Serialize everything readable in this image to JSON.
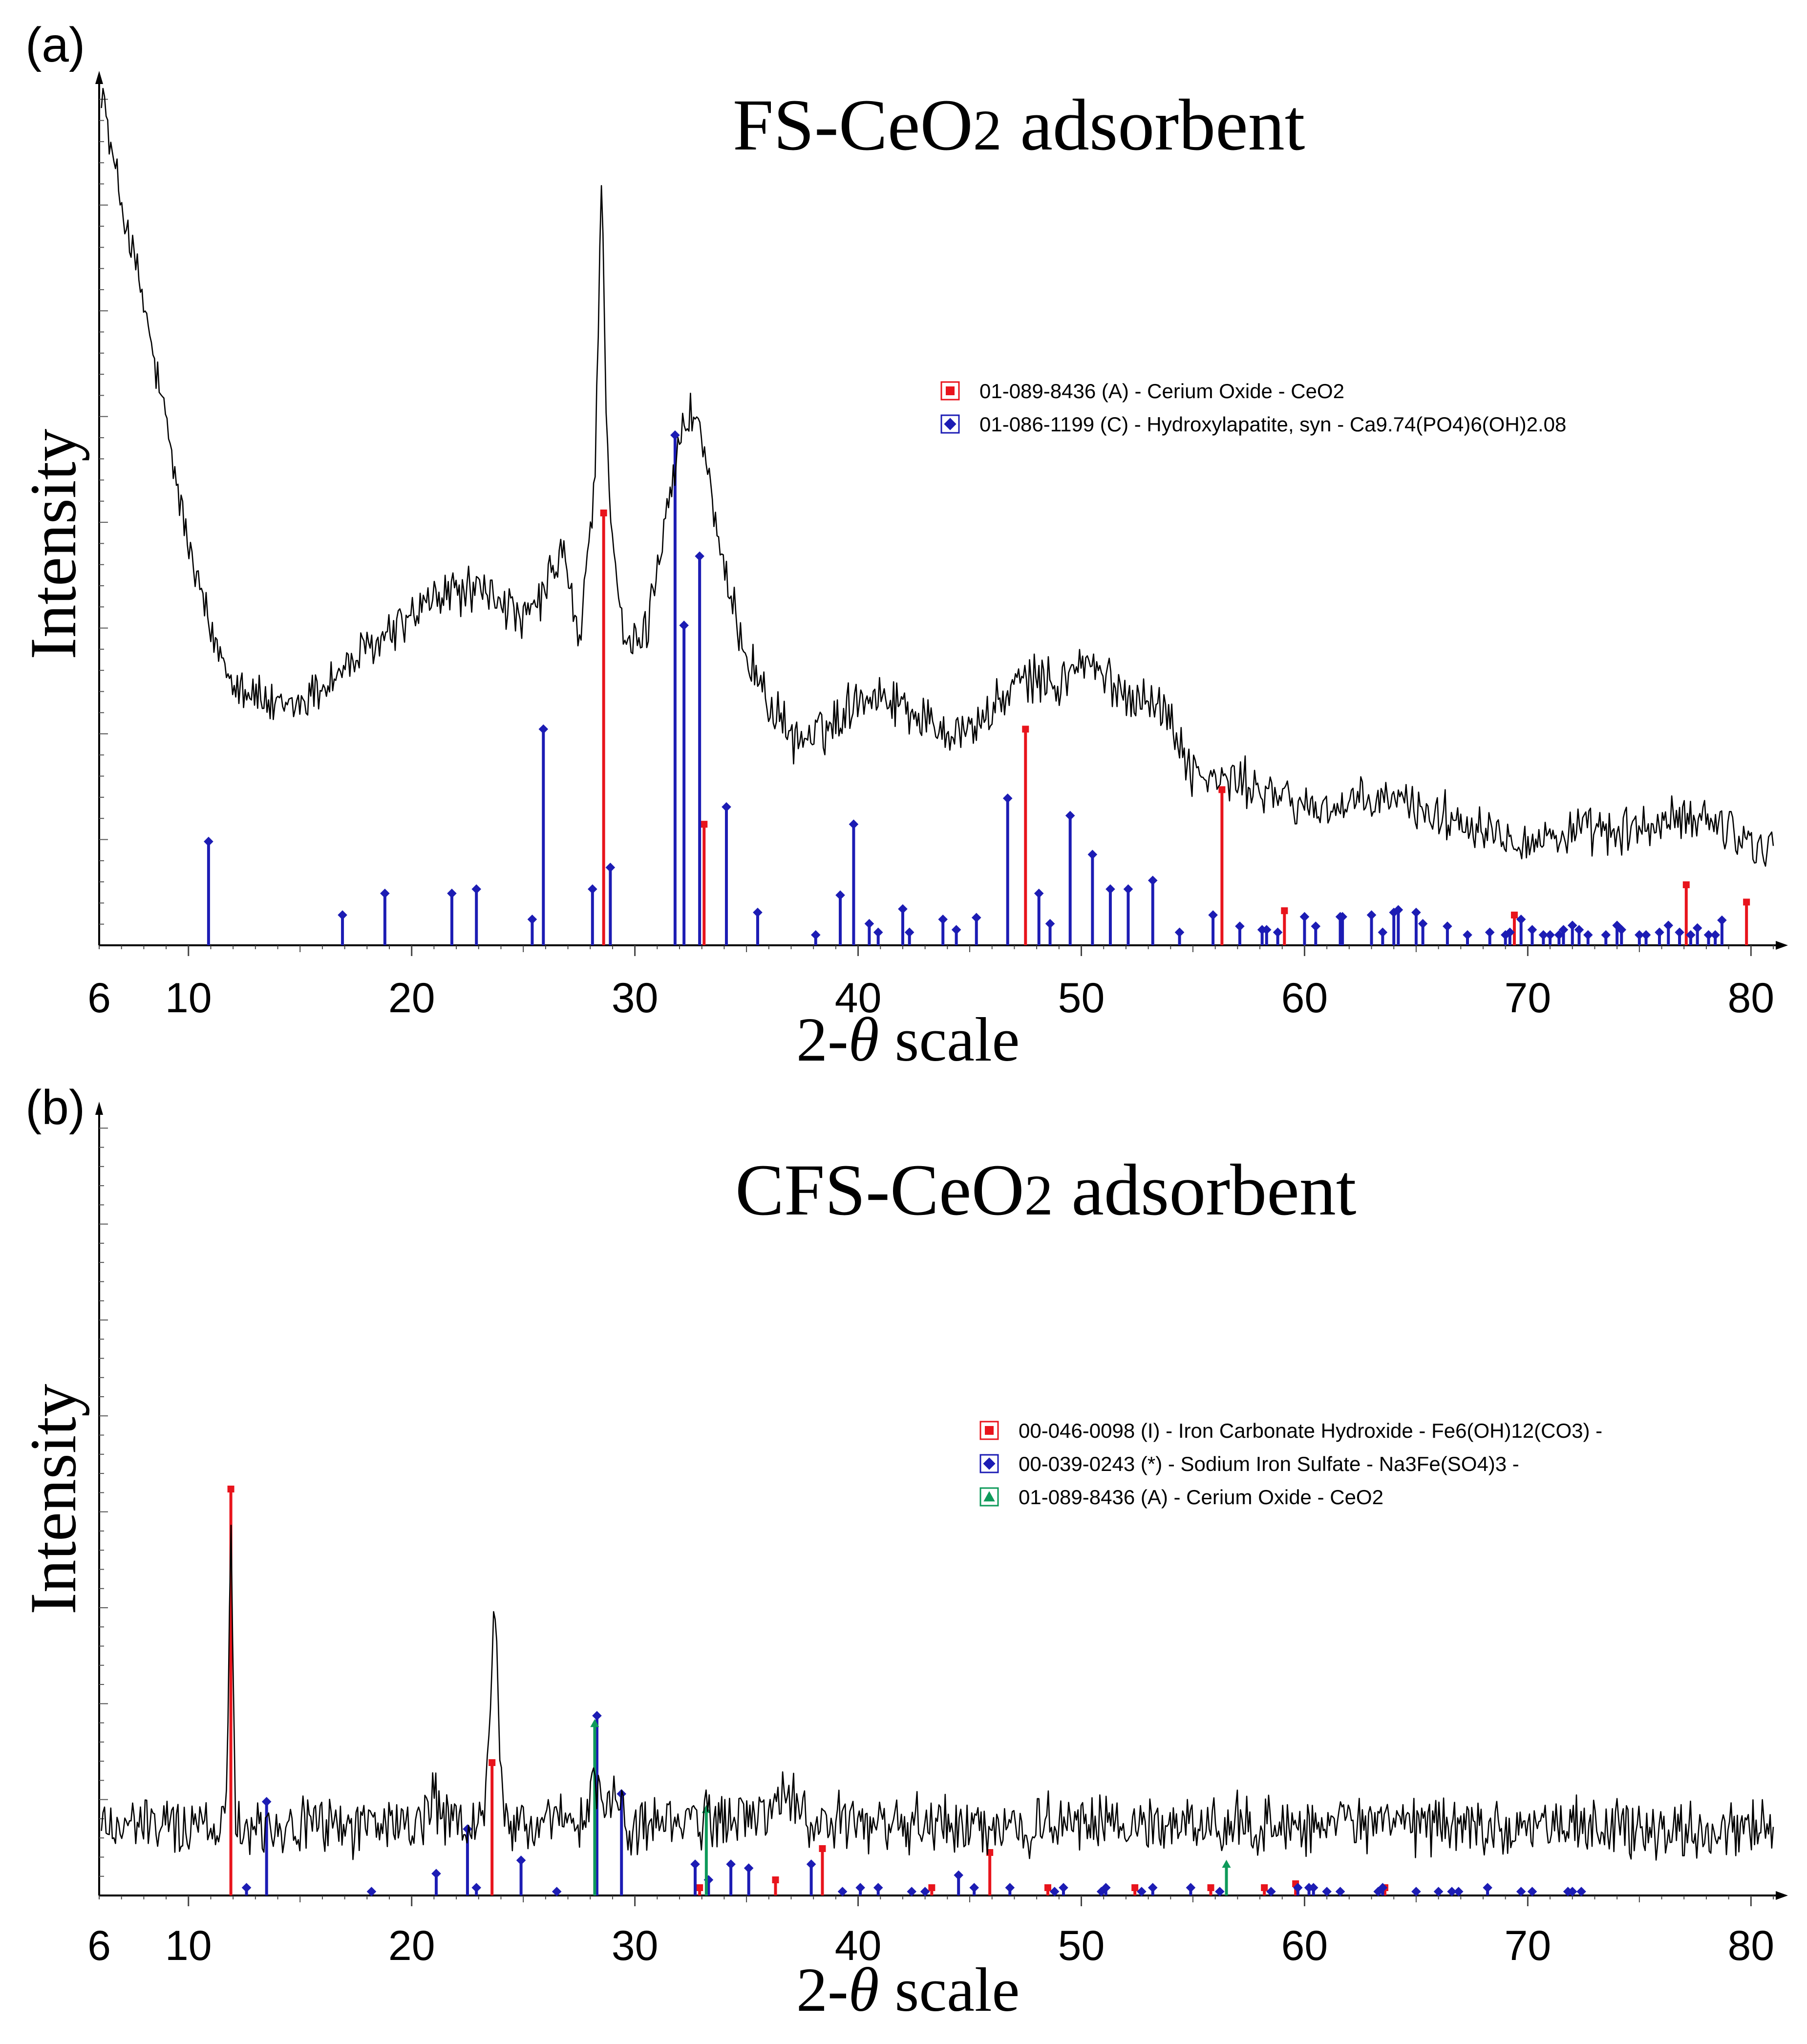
{
  "panels": [
    {
      "label": "(a)",
      "title_main": "FS-CeO",
      "title_sub": "2",
      "title_rest": " adsorbent",
      "ylabel": "Intensity",
      "xlabel_prefix": "2-",
      "xlabel_symbol": "θ",
      "xlabel_suffix": " scale",
      "tick_labels": [
        "6",
        "10",
        "20",
        "30",
        "40",
        "50",
        "60",
        "70",
        "80"
      ],
      "legend": [
        {
          "marker": "square",
          "color": "#e8141c",
          "text": "01-089-8436 (A) - Cerium Oxide - CeO2"
        },
        {
          "marker": "diamond",
          "color": "#1c1cb4",
          "text": "01-086-1199 (C) - Hydroxylapatite, syn - Ca9.74(PO4)6(OH)2.08"
        }
      ]
    },
    {
      "label": "(b)",
      "title_main": "CFS-CeO",
      "title_sub": "2",
      "title_rest": " adsorbent",
      "ylabel": "Intensity",
      "xlabel_prefix": "2-",
      "xlabel_symbol": "θ",
      "xlabel_suffix": " scale",
      "tick_labels": [
        "6",
        "10",
        "20",
        "30",
        "40",
        "50",
        "60",
        "70",
        "80"
      ],
      "legend": [
        {
          "marker": "square",
          "color": "#e8141c",
          "text": "00-046-0098 (I) - Iron Carbonate Hydroxide - Fe6(OH)12(CO3) -"
        },
        {
          "marker": "diamond",
          "color": "#1c1cb4",
          "text": "00-039-0243 (*) - Sodium Iron Sulfate - Na3Fe(SO4)3 -"
        },
        {
          "marker": "triangle",
          "color": "#0e9a5a",
          "text": "01-089-8436 (A) - Cerium Oxide - CeO2"
        }
      ]
    }
  ],
  "chart_data": [
    {
      "type": "line",
      "title": "FS-CeO2 adsorbent",
      "xlabel": "2-θ scale",
      "ylabel": "Intensity",
      "xlim": [
        6,
        81
      ],
      "ylim": [
        0,
        100
      ],
      "xticks": [
        6,
        10,
        20,
        30,
        40,
        50,
        60,
        70,
        80
      ],
      "pattern_profile": [
        [
          6.1,
          100
        ],
        [
          6.5,
          92
        ],
        [
          7,
          86
        ],
        [
          8,
          74
        ],
        [
          9,
          60
        ],
        [
          10,
          46
        ],
        [
          11,
          36
        ],
        [
          12,
          31
        ],
        [
          13,
          29
        ],
        [
          14,
          27
        ],
        [
          15,
          28
        ],
        [
          16,
          30
        ],
        [
          17,
          32
        ],
        [
          18,
          34
        ],
        [
          19,
          36
        ],
        [
          20,
          38
        ],
        [
          21,
          40
        ],
        [
          22,
          41
        ],
        [
          23,
          41
        ],
        [
          24,
          40
        ],
        [
          25,
          37
        ],
        [
          26,
          41
        ],
        [
          26.8,
          46
        ],
        [
          27.5,
          34
        ],
        [
          28.2,
          54
        ],
        [
          28.5,
          88
        ],
        [
          28.8,
          54
        ],
        [
          29.5,
          34
        ],
        [
          30.5,
          36
        ],
        [
          31.5,
          52
        ],
        [
          32.2,
          60
        ],
        [
          32.7,
          62
        ],
        [
          33.2,
          56
        ],
        [
          34,
          42
        ],
        [
          35,
          34
        ],
        [
          36,
          28
        ],
        [
          37,
          24
        ],
        [
          38,
          24
        ],
        [
          39,
          26
        ],
        [
          40,
          29
        ],
        [
          41,
          29
        ],
        [
          42,
          28
        ],
        [
          43,
          26
        ],
        [
          44,
          25
        ],
        [
          45,
          25
        ],
        [
          46,
          27
        ],
        [
          47,
          30
        ],
        [
          48,
          31
        ],
        [
          49,
          30
        ],
        [
          50,
          33
        ],
        [
          51,
          31
        ],
        [
          52,
          29
        ],
        [
          53,
          29
        ],
        [
          54,
          26
        ],
        [
          55,
          20
        ],
        [
          56,
          19
        ],
        [
          57,
          19
        ],
        [
          58,
          18
        ],
        [
          59,
          17
        ],
        [
          60,
          16
        ],
        [
          62,
          16
        ],
        [
          64,
          17
        ],
        [
          66,
          15
        ],
        [
          68,
          14
        ],
        [
          70,
          12
        ],
        [
          72,
          13
        ],
        [
          74,
          13
        ],
        [
          76,
          14
        ],
        [
          78,
          15
        ],
        [
          80,
          12
        ],
        [
          81,
          11
        ]
      ],
      "noise_amplitude": 2.2,
      "series": [
        {
          "name": "01-089-8436 (A) - Cerium Oxide - CeO2",
          "color": "#e8141c",
          "marker": "square",
          "x": [
            28.6,
            33.1,
            47.5,
            56.3,
            59.1,
            69.4,
            77.1,
            79.8
          ],
          "y": [
            50,
            14,
            25,
            18,
            4,
            3.5,
            7,
            5
          ]
        },
        {
          "name": "01-086-1199 (C) - Hydroxylapatite, syn - Ca9.74(PO4)6(OH)2.08",
          "color": "#1c1cb4",
          "marker": "diamond",
          "x": [
            10.9,
            16.9,
            18.8,
            21.8,
            22.9,
            25.4,
            25.9,
            28.1,
            28.9,
            31.8,
            32.2,
            32.9,
            34.1,
            35.5,
            38.1,
            39.2,
            39.8,
            40.5,
            40.9,
            42.0,
            42.3,
            43.8,
            44.4,
            45.3,
            46.7,
            48.1,
            48.6,
            49.5,
            50.5,
            51.3,
            52.1,
            53.2,
            54.4,
            55.9,
            57.1,
            58.1,
            58.3,
            58.8,
            60.0,
            60.5,
            61.6,
            61.7,
            63.0,
            63.5,
            64.0,
            64.2,
            65.0,
            65.3,
            66.4,
            67.3,
            68.3,
            69.0,
            69.2,
            69.7,
            70.2,
            70.7,
            71.0,
            71.4,
            71.6,
            72.0,
            72.3,
            72.7,
            73.5,
            74.0,
            74.2,
            75.0,
            75.3,
            75.9,
            76.3,
            76.8,
            77.3,
            77.6,
            78.1,
            78.4,
            78.7
          ],
          "y": [
            12,
            3.5,
            6,
            6,
            6.5,
            3,
            25,
            6.5,
            9,
            59,
            37,
            45,
            16,
            3.8,
            1.2,
            5.8,
            14,
            2.5,
            1.5,
            4.2,
            1.5,
            3,
            1.8,
            3.2,
            17,
            6,
            2.5,
            15,
            10.5,
            6.5,
            6.5,
            7.5,
            1.5,
            3.5,
            2.2,
            1.8,
            1.8,
            1.5,
            3.3,
            2.2,
            3.3,
            3.3,
            3.5,
            1.5,
            3.8,
            4.1,
            3.8,
            2.5,
            2.2,
            1.2,
            1.5,
            1.2,
            1.5,
            3.0,
            1.8,
            1.2,
            1.2,
            1.2,
            1.8,
            2.3,
            1.8,
            1.2,
            1.2,
            2.3,
            1.8,
            1.2,
            1.2,
            1.5,
            2.3,
            1.5,
            1.2,
            2.0,
            1.2,
            1.2,
            2.9
          ]
        }
      ]
    },
    {
      "type": "line",
      "title": "CFS-CeO2 adsorbent",
      "xlabel": "2-θ scale",
      "ylabel": "Intensity",
      "xlim": [
        6,
        81
      ],
      "ylim": [
        0,
        100
      ],
      "xticks": [
        6,
        10,
        20,
        30,
        40,
        50,
        60,
        70,
        80
      ],
      "pattern_profile": [
        [
          6.1,
          9
        ],
        [
          11.5,
          9
        ],
        [
          11.7,
          12
        ],
        [
          11.9,
          48
        ],
        [
          12.1,
          12
        ],
        [
          12.4,
          9
        ],
        [
          20.5,
          9
        ],
        [
          21.0,
          14
        ],
        [
          21.3,
          9
        ],
        [
          23.2,
          9
        ],
        [
          23.5,
          22
        ],
        [
          23.7,
          40
        ],
        [
          23.9,
          22
        ],
        [
          24.2,
          9
        ],
        [
          27.8,
          9
        ],
        [
          28.2,
          16
        ],
        [
          28.5,
          12
        ],
        [
          29.2,
          12
        ],
        [
          29.6,
          9
        ],
        [
          35.5,
          10
        ],
        [
          36.8,
          13
        ],
        [
          37.5,
          10
        ],
        [
          40,
          9
        ],
        [
          60,
          9
        ],
        [
          70,
          9
        ],
        [
          81,
          8
        ]
      ],
      "noise_amplitude": 3.0,
      "series": [
        {
          "name": "00-046-0098 (I) - Iron Carbonate Hydroxide - Fe6(OH)12(CO3) -",
          "color": "#e8141c",
          "marker": "square",
          "x": [
            11.9,
            23.6,
            32.9,
            36.3,
            38.4,
            43.3,
            45.9,
            48.5,
            52.4,
            55.8,
            58.2,
            59.6,
            63.6
          ],
          "y": [
            52,
            17,
            1,
            2,
            6,
            1,
            5.5,
            1,
            1,
            1,
            1,
            1.5,
            1
          ]
        },
        {
          "name": "00-039-0243 (*) - Sodium Iron Sulfate - Na3Fe(SO4)3 -",
          "color": "#1c1cb4",
          "marker": "diamond",
          "x": [
            12.6,
            13.5,
            18.2,
            21.1,
            22.5,
            22.9,
            24.9,
            26.5,
            28.3,
            29.4,
            32.7,
            33.3,
            34.3,
            35.1,
            37.9,
            39.3,
            40.1,
            40.9,
            42.4,
            43.0,
            44.5,
            45.2,
            46.8,
            48.8,
            49.2,
            50.9,
            51.1,
            52.7,
            53.2,
            54.9,
            56.2,
            58.5,
            59.7,
            60.2,
            60.4,
            61.0,
            61.6,
            63.3,
            63.5,
            65.0,
            66.0,
            66.6,
            66.9,
            68.2,
            69.7,
            70.2,
            71.8,
            72.0,
            72.4
          ],
          "y": [
            1,
            12,
            0.5,
            2.8,
            8.5,
            1,
            4.5,
            0.5,
            23,
            13,
            4,
            2,
            4,
            3.5,
            4,
            0.5,
            1,
            1,
            0.5,
            0.5,
            2.6,
            1,
            1,
            0.5,
            1,
            0.5,
            1,
            0.5,
            1,
            1,
            0.5,
            0.5,
            1,
            1,
            1,
            0.5,
            0.5,
            0.5,
            1,
            0.5,
            0.5,
            0.5,
            0.5,
            1,
            0.5,
            0.5,
            0.5,
            0.5,
            0.5
          ]
        },
        {
          "name": "01-089-8436 (A) - Cerium Oxide - CeO2",
          "color": "#0e9a5a",
          "marker": "triangle",
          "x": [
            28.2,
            33.2,
            56.5
          ],
          "y": [
            22,
            11,
            4
          ]
        }
      ]
    }
  ]
}
